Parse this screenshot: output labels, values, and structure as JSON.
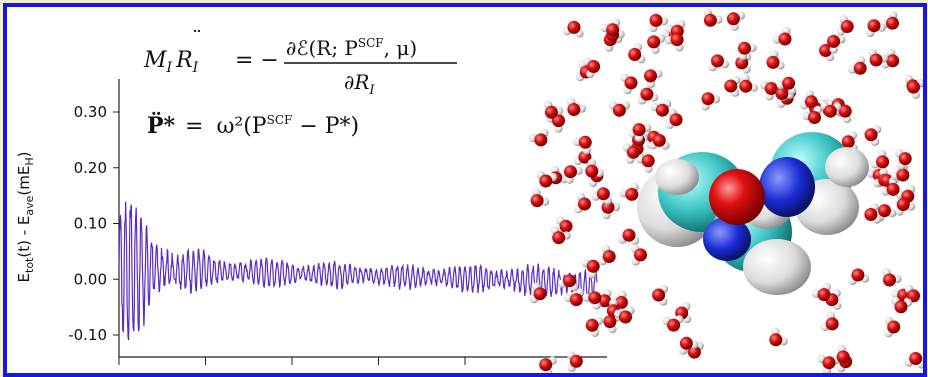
{
  "equations": {
    "eq1": {
      "lhs_M": "M",
      "lhs_sub": "I",
      "lhs_R": "R",
      "lhs_dots": "¨",
      "lhs_sub2": "I",
      "eq_sign": "= −",
      "num": "∂ℰ(R; P",
      "num_sup": "SCF",
      "num_end": ", μ)",
      "den": "∂R",
      "den_sub": "I"
    },
    "eq2": {
      "lhs": "P̈*",
      "eq_sign": "=",
      "omega": "ω²(P",
      "sup": "SCF",
      "rest": " − P*)"
    }
  },
  "chart_data": {
    "type": "line",
    "title": "",
    "xlabel": "",
    "ylabel": "E_tot(t) - E_ave(mE_H)",
    "ylabel_parts": {
      "E": "E",
      "tot": "tot",
      "mid": "(t) - E",
      "ave": "ave",
      "unit": "(mE",
      "H": "H",
      "close": ")"
    },
    "yticks": [
      "0.30",
      "0.20",
      "0.10",
      "0.00",
      "-0.10"
    ],
    "ylim": [
      -0.14,
      0.36
    ],
    "xlim": [
      0,
      500
    ],
    "series_color": "#5a2bbf",
    "series": [
      {
        "signal": "damped oscillation",
        "x_range": [
          0,
          500
        ],
        "envelope_points": [
          {
            "t": 0,
            "amp": 0.15
          },
          {
            "t": 10,
            "amp": 0.13
          },
          {
            "t": 40,
            "amp": 0.06
          },
          {
            "t": 100,
            "amp": 0.025
          },
          {
            "t": 300,
            "amp": 0.02
          },
          {
            "t": 500,
            "amp": 0.03
          }
        ],
        "baseline_points": [
          {
            "t": 0,
            "y": 0.02
          },
          {
            "t": 200,
            "y": 0.01
          },
          {
            "t": 400,
            "y": 0.0
          },
          {
            "t": 500,
            "y": -0.01
          }
        ]
      }
    ]
  },
  "colors": {
    "frame_border": "#1616e6",
    "background": "#f6f0c4",
    "oxygen": "#d10f0f",
    "hydrogen": "#e6e6e6",
    "carbon": "#3cc3c3",
    "nitrogen": "#1a2bd6"
  }
}
